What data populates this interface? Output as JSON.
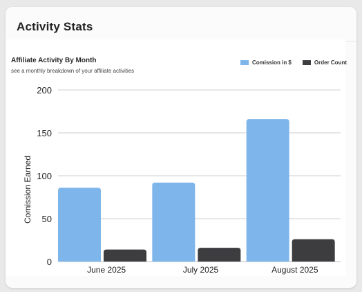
{
  "card": {
    "title": "Activity Stats"
  },
  "chart_data": {
    "type": "bar",
    "title": "Affiliate Activity By Month",
    "subtitle": "see a monthly breakdown of your affiliate activities",
    "ylabel": "Comission Earned",
    "xlabel": "",
    "categories": [
      "June 2025",
      "July 2025",
      "August 2025"
    ],
    "series": [
      {
        "name": "Comission in $",
        "values": [
          86,
          92,
          166
        ],
        "color": "#7eb5ea"
      },
      {
        "name": "Order Count",
        "values": [
          14,
          16,
          26
        ],
        "color": "#3d3d40"
      }
    ],
    "ylim": [
      0,
      200
    ],
    "yticks": [
      0,
      50,
      100,
      150,
      200
    ],
    "grid": true,
    "legend_position": "top-right"
  }
}
